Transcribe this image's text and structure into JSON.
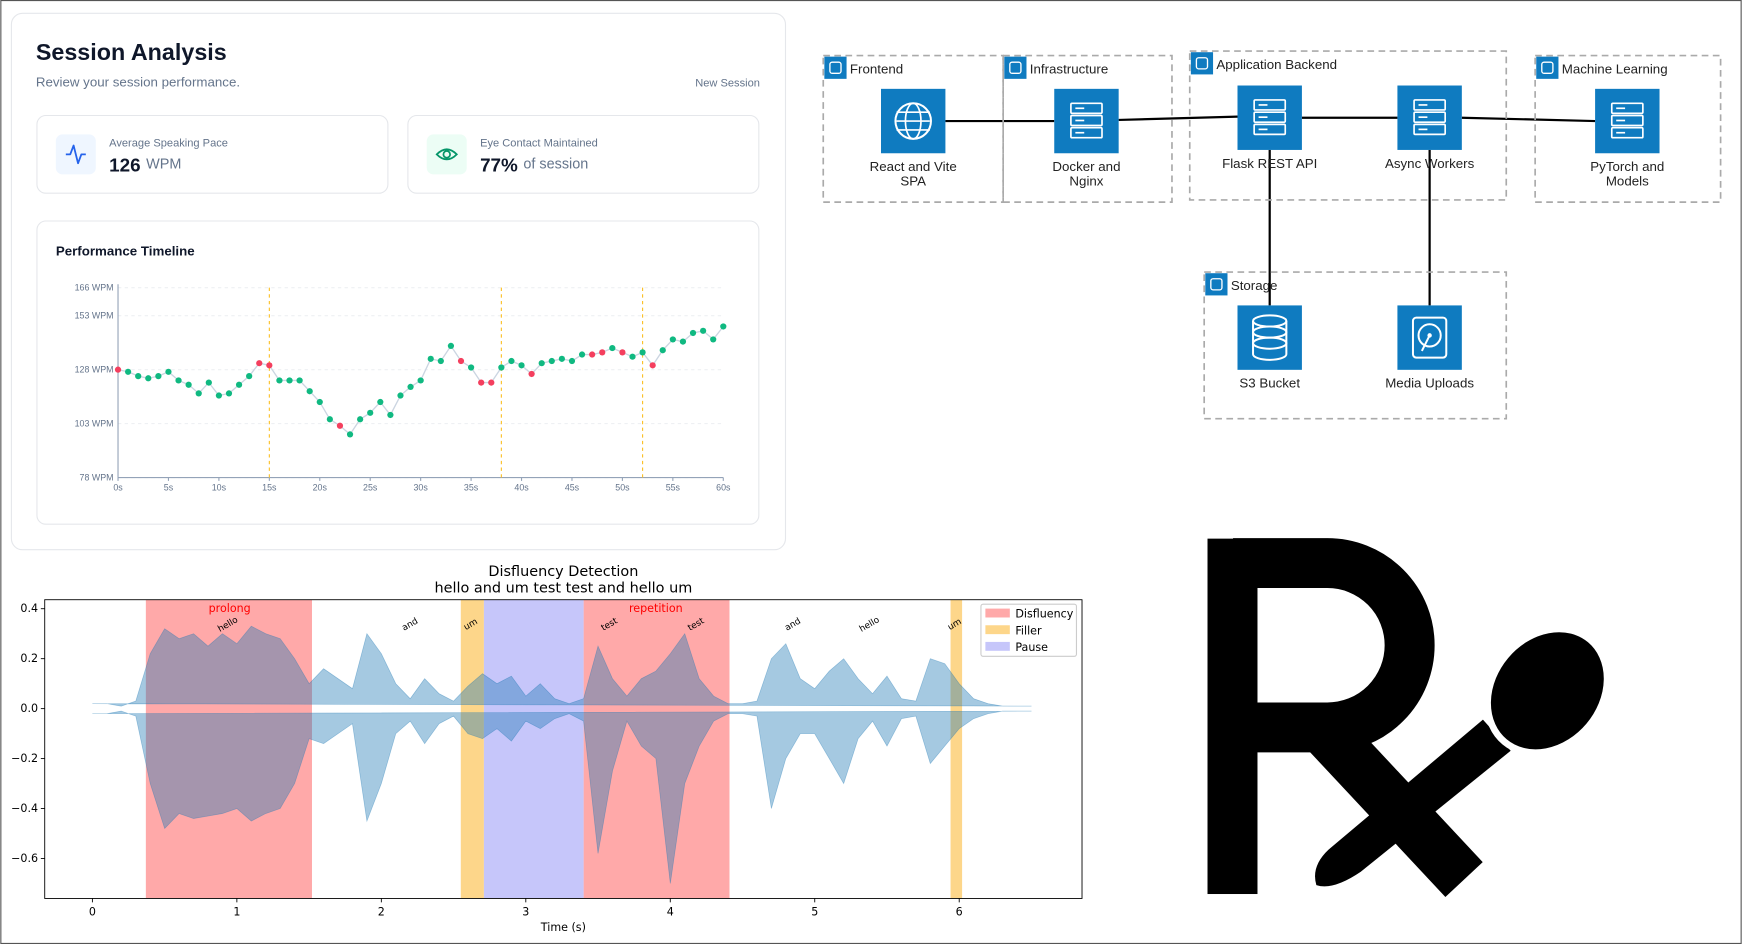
{
  "dashboard": {
    "title": "Session Analysis",
    "subtitle": "Review your session performance.",
    "action": "New Session",
    "stats": [
      {
        "label": "Average Speaking Pace",
        "value": "126",
        "unit": "WPM"
      },
      {
        "label": "Eye Contact Maintained",
        "value": "77%",
        "unit": "of session"
      }
    ]
  },
  "chart_data": [
    {
      "type": "line",
      "title": "Performance Timeline",
      "x": [
        0,
        1,
        2,
        3,
        4,
        5,
        6,
        7,
        8,
        9,
        10,
        11,
        12,
        13,
        14,
        15,
        16,
        17,
        18,
        19,
        20,
        21,
        22,
        23,
        24,
        25,
        26,
        27,
        28,
        29,
        30,
        31,
        32,
        33,
        34,
        35,
        36,
        37,
        38,
        39,
        40,
        41,
        42,
        43,
        44,
        45,
        46,
        47,
        48,
        49,
        50,
        51,
        52,
        53,
        54,
        55,
        56,
        57,
        58,
        59,
        60
      ],
      "values": [
        128,
        127,
        125,
        124,
        125,
        127,
        123,
        121,
        117,
        122,
        116,
        117,
        121,
        125,
        131,
        130,
        123,
        123,
        123,
        118,
        113,
        105,
        102,
        98,
        105,
        108,
        113,
        107,
        116,
        120,
        123,
        133,
        132,
        139,
        132,
        129,
        122,
        122,
        129,
        132,
        130,
        126,
        131,
        132,
        133,
        132,
        135,
        135,
        136,
        138,
        136,
        134,
        136,
        130,
        137,
        142,
        141,
        145,
        146,
        142,
        148
      ],
      "point_colors": [
        "#f43f5e",
        "#10b981",
        "#10b981",
        "#10b981",
        "#10b981",
        "#10b981",
        "#10b981",
        "#10b981",
        "#10b981",
        "#10b981",
        "#10b981",
        "#10b981",
        "#10b981",
        "#10b981",
        "#f43f5e",
        "#f43f5e",
        "#10b981",
        "#10b981",
        "#10b981",
        "#10b981",
        "#10b981",
        "#10b981",
        "#f43f5e",
        "#10b981",
        "#10b981",
        "#10b981",
        "#10b981",
        "#10b981",
        "#10b981",
        "#10b981",
        "#10b981",
        "#10b981",
        "#10b981",
        "#10b981",
        "#f43f5e",
        "#10b981",
        "#f43f5e",
        "#f43f5e",
        "#10b981",
        "#10b981",
        "#10b981",
        "#f43f5e",
        "#10b981",
        "#10b981",
        "#10b981",
        "#10b981",
        "#10b981",
        "#f43f5e",
        "#f43f5e",
        "#10b981",
        "#f43f5e",
        "#10b981",
        "#10b981",
        "#f43f5e",
        "#10b981",
        "#10b981",
        "#10b981",
        "#10b981",
        "#10b981",
        "#10b981",
        "#10b981"
      ],
      "line_color": "#cbd5e1",
      "grid": true,
      "markers": [
        15,
        38,
        52
      ],
      "marker_color": "#fbbf24",
      "xlim": [
        0,
        60
      ],
      "xticks": [
        {
          "value": 0,
          "label": "0s"
        },
        {
          "value": 5,
          "label": "5s"
        },
        {
          "value": 10,
          "label": "10s"
        },
        {
          "value": 15,
          "label": "15s"
        },
        {
          "value": 20,
          "label": "20s"
        },
        {
          "value": 25,
          "label": "25s"
        },
        {
          "value": 30,
          "label": "30s"
        },
        {
          "value": 35,
          "label": "35s"
        },
        {
          "value": 40,
          "label": "40s"
        },
        {
          "value": 45,
          "label": "45s"
        },
        {
          "value": 50,
          "label": "50s"
        },
        {
          "value": 55,
          "label": "55s"
        },
        {
          "value": 60,
          "label": "60s"
        }
      ],
      "ylim": [
        78,
        166
      ],
      "yticks": [
        {
          "value": 166,
          "label": "166 WPM"
        },
        {
          "value": 153,
          "label": "153 WPM"
        },
        {
          "value": 128,
          "label": "128 WPM"
        },
        {
          "value": 103,
          "label": "103 WPM"
        },
        {
          "value": 78,
          "label": "78 WPM"
        }
      ]
    },
    {
      "type": "waveform",
      "title": "Disfluency Detection",
      "subtitle": "hello and um test test and hello um",
      "xlabel": "Time (s)",
      "x": [
        0,
        0.1,
        0.2,
        0.3,
        0.4,
        0.5,
        0.6,
        0.7,
        0.8,
        0.9,
        1,
        1.1,
        1.2,
        1.3,
        1.4,
        1.5,
        1.6,
        1.7,
        1.8,
        1.9,
        2,
        2.1,
        2.2,
        2.3,
        2.4,
        2.5,
        2.6,
        2.7,
        2.8,
        2.9,
        3,
        3.1,
        3.2,
        3.3,
        3.4,
        3.5,
        3.6,
        3.7,
        3.8,
        3.9,
        4,
        4.1,
        4.2,
        4.3,
        4.4,
        4.5,
        4.6,
        4.7,
        4.8,
        4.9,
        5,
        5.1,
        5.2,
        5.3,
        5.4,
        5.5,
        5.6,
        5.7,
        5.8,
        5.9,
        6,
        6.1,
        6.2,
        6.3,
        6.4,
        6.5
      ],
      "upper": [
        0.02,
        0.02,
        0.01,
        0.03,
        0.22,
        0.32,
        0.28,
        0.3,
        0.25,
        0.3,
        0.26,
        0.33,
        0.3,
        0.28,
        0.2,
        0.1,
        0.16,
        0.12,
        0.08,
        0.3,
        0.22,
        0.1,
        0.04,
        0.12,
        0.06,
        0.03,
        0.09,
        0.14,
        0.1,
        0.13,
        0.05,
        0.1,
        0.04,
        0.02,
        0.04,
        0.25,
        0.12,
        0.05,
        0.12,
        0.15,
        0.22,
        0.3,
        0.12,
        0.05,
        0.02,
        0.02,
        0.03,
        0.2,
        0.26,
        0.12,
        0.08,
        0.15,
        0.2,
        0.12,
        0.06,
        0.13,
        0.04,
        0.03,
        0.2,
        0.18,
        0.1,
        0.04,
        0.02,
        0.01,
        0.01,
        0.01
      ],
      "lower": [
        -0.02,
        -0.02,
        -0.01,
        -0.03,
        -0.3,
        -0.48,
        -0.42,
        -0.44,
        -0.43,
        -0.42,
        -0.4,
        -0.45,
        -0.42,
        -0.4,
        -0.3,
        -0.12,
        -0.14,
        -0.1,
        -0.06,
        -0.45,
        -0.3,
        -0.1,
        -0.05,
        -0.14,
        -0.06,
        -0.03,
        -0.1,
        -0.12,
        -0.08,
        -0.13,
        -0.05,
        -0.08,
        -0.04,
        -0.02,
        -0.05,
        -0.58,
        -0.25,
        -0.05,
        -0.15,
        -0.2,
        -0.7,
        -0.3,
        -0.15,
        -0.05,
        -0.02,
        -0.02,
        -0.03,
        -0.4,
        -0.2,
        -0.1,
        -0.1,
        -0.2,
        -0.3,
        -0.12,
        -0.05,
        -0.15,
        -0.04,
        -0.03,
        -0.22,
        -0.15,
        -0.08,
        -0.04,
        -0.02,
        -0.01,
        -0.01,
        -0.01
      ],
      "color": "#1f77b4",
      "xlim": [
        -0.33,
        6.85
      ],
      "xticks": [
        0,
        1,
        2,
        3,
        4,
        5,
        6
      ],
      "ylim": [
        -0.76,
        0.436
      ],
      "yticks": [
        0.4,
        0.2,
        {
          "value": 0,
          "label": "0.0"
        },
        {
          "value": -0.2,
          "label": "−0.2"
        },
        {
          "value": -0.4,
          "label": "−0.4"
        },
        {
          "value": -0.6,
          "label": "−0.6"
        }
      ],
      "legend_position": "upper right",
      "regions": [
        {
          "name": "Disfluency",
          "color": "#ffa9a9",
          "spans": [
            [
              0.37,
              1.52
            ],
            [
              3.4,
              4.41
            ]
          ]
        },
        {
          "name": "Filler",
          "color": "#fdd68a",
          "spans": [
            [
              2.55,
              2.71
            ],
            [
              5.94,
              6.02
            ]
          ]
        },
        {
          "name": "Pause",
          "color": "#c6c6fa",
          "spans": [
            [
              2.71,
              3.4
            ]
          ]
        }
      ],
      "annotations": [
        {
          "text": "prolong",
          "x": 0.95,
          "y": 0.4,
          "color": "#ff0000"
        },
        {
          "text": "repetition",
          "x": 3.9,
          "y": 0.4,
          "color": "#ff0000"
        }
      ],
      "words": [
        {
          "text": "hello",
          "x": 0.94,
          "y": 0.335
        },
        {
          "text": "and",
          "x": 2.2,
          "y": 0.335
        },
        {
          "text": "um",
          "x": 2.62,
          "y": 0.335
        },
        {
          "text": "test",
          "x": 3.58,
          "y": 0.335
        },
        {
          "text": "test",
          "x": 4.18,
          "y": 0.335
        },
        {
          "text": "and",
          "x": 4.85,
          "y": 0.335
        },
        {
          "text": "hello",
          "x": 5.38,
          "y": 0.335
        },
        {
          "text": "um",
          "x": 5.97,
          "y": 0.335
        }
      ]
    }
  ],
  "architecture": {
    "groups": [
      "Frontend",
      "Infrastructure",
      "Application Backend",
      "Machine Learning",
      "Storage"
    ],
    "nodes": [
      [
        "React and Vite",
        "SPA"
      ],
      [
        "Docker and",
        "Nginx"
      ],
      [
        "Flask REST API"
      ],
      [
        "Async Workers"
      ],
      [
        "PyTorch and",
        "Models"
      ],
      [
        "S3 Bucket"
      ],
      [
        "Media Uploads"
      ]
    ]
  }
}
